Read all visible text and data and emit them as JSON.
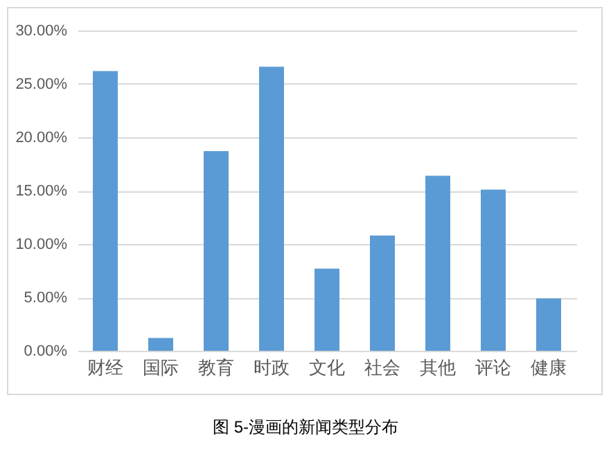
{
  "chart_data": {
    "type": "bar",
    "categories": [
      "财经",
      "国际",
      "教育",
      "时政",
      "文化",
      "社会",
      "其他",
      "评论",
      "健康"
    ],
    "values": [
      26.2,
      1.2,
      18.7,
      26.6,
      7.7,
      10.8,
      16.4,
      15.1,
      4.9
    ],
    "color": "#5b9bd5",
    "ylim": [
      0,
      30
    ],
    "yticks": [
      {
        "value": 0,
        "label": "0.00%"
      },
      {
        "value": 5,
        "label": "5.00%"
      },
      {
        "value": 10,
        "label": "10.00%"
      },
      {
        "value": 15,
        "label": "15.00%"
      },
      {
        "value": 20,
        "label": "20.00%"
      },
      {
        "value": 25,
        "label": "25.00%"
      },
      {
        "value": 30,
        "label": "30.00%"
      }
    ],
    "grid": "y",
    "annotations": [
      "图 5-漫画的新闻类型分布"
    ]
  }
}
